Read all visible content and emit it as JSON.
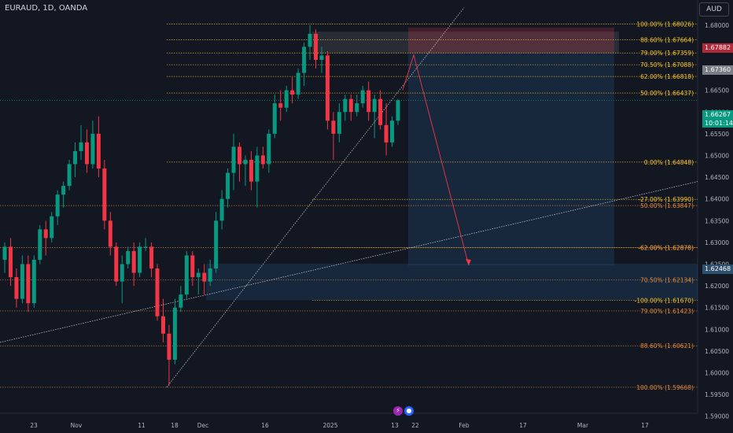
{
  "header": {
    "symbol": "EURAUD, 1D, OANDA",
    "currency": "AUD"
  },
  "price_tags": [
    {
      "value": "1.67882",
      "color": "#b2283a"
    },
    {
      "value": "1.67360",
      "color": "#7a7d86"
    },
    {
      "value": "1.66267",
      "sub": "10:01:14",
      "color": "#089981"
    },
    {
      "value": "1.62468",
      "color": "#2f4f6f"
    }
  ],
  "chart_data": {
    "type": "candlestick",
    "y_axis": {
      "ylim": [
        1.5885,
        1.6845
      ],
      "ticks": [
        "1.68000",
        "1.67500",
        "1.67000",
        "1.66500",
        "1.66000",
        "1.65500",
        "1.65000",
        "1.64500",
        "1.64000",
        "1.63500",
        "1.63000",
        "1.62500",
        "1.62000",
        "1.61500",
        "1.61000",
        "1.60500",
        "1.60000",
        "1.59500",
        "1.59000"
      ]
    },
    "x_axis": {
      "ticks": [
        "23",
        "Nov",
        "11",
        "18",
        "Dec",
        "16",
        "2025",
        "13",
        "22",
        "Feb",
        "17",
        "Mar",
        "17"
      ]
    },
    "candles_ohlc": [
      [
        1.626,
        1.63,
        1.623,
        1.629
      ],
      [
        1.629,
        1.631,
        1.62,
        1.622
      ],
      [
        1.622,
        1.624,
        1.615,
        1.617
      ],
      [
        1.617,
        1.627,
        1.616,
        1.625
      ],
      [
        1.625,
        1.627,
        1.614,
        1.616
      ],
      [
        1.616,
        1.627,
        1.615,
        1.626
      ],
      [
        1.626,
        1.634,
        1.625,
        1.633
      ],
      [
        1.633,
        1.635,
        1.627,
        1.631
      ],
      [
        1.631,
        1.637,
        1.63,
        1.636
      ],
      [
        1.636,
        1.642,
        1.634,
        1.641
      ],
      [
        1.641,
        1.644,
        1.638,
        1.643
      ],
      [
        1.643,
        1.649,
        1.642,
        1.648
      ],
      [
        1.648,
        1.653,
        1.645,
        1.651
      ],
      [
        1.651,
        1.657,
        1.649,
        1.653
      ],
      [
        1.653,
        1.656,
        1.646,
        1.648
      ],
      [
        1.648,
        1.658,
        1.647,
        1.655
      ],
      [
        1.655,
        1.659,
        1.645,
        1.647
      ],
      [
        1.647,
        1.649,
        1.633,
        1.635
      ],
      [
        1.635,
        1.637,
        1.627,
        1.629
      ],
      [
        1.629,
        1.63,
        1.62,
        1.621
      ],
      [
        1.621,
        1.627,
        1.616,
        1.625
      ],
      [
        1.625,
        1.629,
        1.624,
        1.628
      ],
      [
        1.628,
        1.63,
        1.62,
        1.623
      ],
      [
        1.623,
        1.63,
        1.622,
        1.629
      ],
      [
        1.629,
        1.631,
        1.628,
        1.629
      ],
      [
        1.629,
        1.63,
        1.622,
        1.624
      ],
      [
        1.624,
        1.625,
        1.612,
        1.613
      ],
      [
        1.613,
        1.617,
        1.607,
        1.609
      ],
      [
        1.609,
        1.611,
        1.597,
        1.603
      ],
      [
        1.603,
        1.617,
        1.602,
        1.615
      ],
      [
        1.615,
        1.62,
        1.614,
        1.618
      ],
      [
        1.618,
        1.628,
        1.617,
        1.627
      ],
      [
        1.627,
        1.628,
        1.62,
        1.622
      ],
      [
        1.622,
        1.624,
        1.618,
        1.623
      ],
      [
        1.623,
        1.625,
        1.618,
        1.621
      ],
      [
        1.621,
        1.626,
        1.62,
        1.624
      ],
      [
        1.624,
        1.637,
        1.623,
        1.635
      ],
      [
        1.635,
        1.642,
        1.633,
        1.64
      ],
      [
        1.64,
        1.647,
        1.638,
        1.646
      ],
      [
        1.646,
        1.655,
        1.642,
        1.652
      ],
      [
        1.652,
        1.653,
        1.644,
        1.648
      ],
      [
        1.648,
        1.65,
        1.643,
        1.649
      ],
      [
        1.649,
        1.651,
        1.642,
        1.644
      ],
      [
        1.644,
        1.652,
        1.638,
        1.65
      ],
      [
        1.65,
        1.652,
        1.647,
        1.648
      ],
      [
        1.648,
        1.656,
        1.646,
        1.655
      ],
      [
        1.655,
        1.664,
        1.654,
        1.662
      ],
      [
        1.662,
        1.665,
        1.658,
        1.661
      ],
      [
        1.661,
        1.666,
        1.66,
        1.665
      ],
      [
        1.665,
        1.668,
        1.662,
        1.664
      ],
      [
        1.664,
        1.67,
        1.663,
        1.669
      ],
      [
        1.669,
        1.676,
        1.666,
        1.675
      ],
      [
        1.675,
        1.68,
        1.672,
        1.678
      ],
      [
        1.678,
        1.679,
        1.67,
        1.672
      ],
      [
        1.672,
        1.675,
        1.669,
        1.673
      ],
      [
        1.673,
        1.674,
        1.656,
        1.658
      ],
      [
        1.658,
        1.66,
        1.649,
        1.655
      ],
      [
        1.655,
        1.662,
        1.653,
        1.66
      ],
      [
        1.66,
        1.664,
        1.658,
        1.663
      ],
      [
        1.663,
        1.664,
        1.658,
        1.66
      ],
      [
        1.66,
        1.664,
        1.659,
        1.662
      ],
      [
        1.662,
        1.666,
        1.661,
        1.665
      ],
      [
        1.665,
        1.667,
        1.658,
        1.66
      ],
      [
        1.66,
        1.664,
        1.654,
        1.663
      ],
      [
        1.663,
        1.665,
        1.656,
        1.657
      ],
      [
        1.657,
        1.662,
        1.65,
        1.653
      ],
      [
        1.653,
        1.659,
        1.652,
        1.658
      ],
      [
        1.658,
        1.663,
        1.657,
        1.6627
      ]
    ],
    "fib_levels": [
      {
        "label": "100.00% (1.68026)",
        "value": 1.68026,
        "color": "#f7c52b"
      },
      {
        "label": "88.60% (1.67664)",
        "value": 1.67664,
        "color": "#f7c52b"
      },
      {
        "label": "79.00% (1.67359)",
        "value": 1.67359,
        "color": "#f7c52b"
      },
      {
        "label": "70.50% (1.67088)",
        "value": 1.67088,
        "color": "#f7c52b"
      },
      {
        "label": "62.00% (1.66818)",
        "value": 1.66818,
        "color": "#f7c52b"
      },
      {
        "label": "50.00% (1.66437)",
        "value": 1.66437,
        "color": "#f7c52b"
      },
      {
        "label": "0.00% (1.64848)",
        "value": 1.64848,
        "color": "#f7c52b"
      },
      {
        "label": "-27.00% (1.63990)",
        "value": 1.6399,
        "color": "#f7c52b"
      },
      {
        "label": "50.00% (1.63847)",
        "value": 1.63847,
        "color": "#e3893a"
      },
      {
        "label": "-62.00% (1.62878)",
        "value": 1.62878,
        "color": "#f7c52b"
      },
      {
        "label": "62.00% (1.62878)",
        "value": 1.62878,
        "color": "#e3893a"
      },
      {
        "label": "70.50% (1.62134)",
        "value": 1.62134,
        "color": "#e3893a"
      },
      {
        "label": "-100.00% (1.61670)",
        "value": 1.6167,
        "color": "#f7c52b"
      },
      {
        "label": "79.00% (1.61423)",
        "value": 1.61423,
        "color": "#e3893a"
      },
      {
        "label": "88.60% (1.60621)",
        "value": 1.60621,
        "color": "#e3893a"
      },
      {
        "label": "100.00% (1.59668)",
        "value": 1.59668,
        "color": "#e3893a"
      }
    ],
    "trade_setup": {
      "stop_zone": [
        1.6736,
        1.6794
      ],
      "target": 1.62468,
      "entry": 1.6736
    },
    "colors": {
      "up": "#089981",
      "down": "#f23645",
      "background": "#131722"
    }
  },
  "bottom": {
    "icon_a": "⚡",
    "icon_b": "●"
  }
}
